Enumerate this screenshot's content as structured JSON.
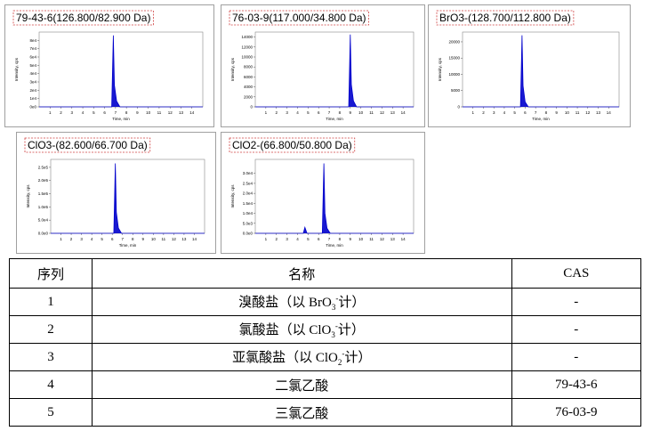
{
  "chart_data": [
    {
      "type": "line",
      "title": "79-43-6(126.800/82.900 Da)",
      "x_label": "Time, min",
      "y_label": "Intensity, cps",
      "color": "#0000cc",
      "x": [
        0,
        6.65,
        6.8,
        6.9,
        7.1,
        7.4,
        15
      ],
      "values": [
        0,
        0,
        86000,
        26000,
        7000,
        0,
        0
      ],
      "xlim": [
        0,
        15
      ],
      "xticks": [
        1,
        2,
        3,
        4,
        5,
        6,
        7,
        8,
        9,
        10,
        11,
        12,
        13,
        14
      ],
      "ylim": [
        0,
        90000
      ],
      "yticks": [
        {
          "value": 0,
          "label": "0e0"
        },
        {
          "value": 10000,
          "label": "1e4"
        },
        {
          "value": 20000,
          "label": "2e4"
        },
        {
          "value": 30000,
          "label": "3e4"
        },
        {
          "value": 40000,
          "label": "4e4"
        },
        {
          "value": 50000,
          "label": "5e4"
        },
        {
          "value": 60000,
          "label": "6e4"
        },
        {
          "value": 70000,
          "label": "7e4"
        },
        {
          "value": 80000,
          "label": "8e4"
        }
      ]
    },
    {
      "type": "line",
      "title": "76-03-9(117.000/34.800 Da)",
      "x_label": "Time, min",
      "y_label": "Intensity, cps",
      "color": "#0000cc",
      "x": [
        0,
        8.85,
        9.0,
        9.1,
        9.3,
        9.6,
        15
      ],
      "values": [
        0,
        0,
        14500,
        4500,
        1200,
        0,
        0
      ],
      "xlim": [
        0,
        15
      ],
      "xticks": [
        1,
        2,
        3,
        4,
        5,
        6,
        7,
        8,
        9,
        10,
        11,
        12,
        13,
        14
      ],
      "ylim": [
        0,
        15000
      ],
      "yticks": [
        0,
        2000,
        4000,
        6000,
        8000,
        10000,
        12000,
        14000
      ]
    },
    {
      "type": "line",
      "title": "BrO3-(128.700/112.800 Da)",
      "x_label": "Time, min",
      "y_label": "Intensity, cps",
      "color": "#0000cc",
      "x": [
        0,
        5.55,
        5.7,
        5.8,
        6.0,
        6.3,
        15
      ],
      "values": [
        0,
        0,
        22000,
        6500,
        1500,
        0,
        0
      ],
      "xlim": [
        0,
        15
      ],
      "xticks": [
        1,
        2,
        3,
        4,
        5,
        6,
        7,
        8,
        9,
        10,
        11,
        12,
        13,
        14
      ],
      "ylim": [
        0,
        23000
      ],
      "yticks": [
        0,
        5000,
        10000,
        15000,
        20000
      ]
    },
    {
      "type": "line",
      "title": "ClO3-(82.600/66.700 Da)",
      "x_label": "Time, min",
      "y_label": "Intensity, cps",
      "color": "#0000cc",
      "x": [
        0,
        6.15,
        6.3,
        6.4,
        6.6,
        6.9,
        15
      ],
      "values": [
        0,
        0,
        265000,
        80000,
        20000,
        0,
        0
      ],
      "xlim": [
        0,
        15
      ],
      "xticks": [
        1,
        2,
        3,
        4,
        5,
        6,
        7,
        8,
        9,
        10,
        11,
        12,
        13,
        14
      ],
      "ylim": [
        0,
        280000
      ],
      "yticks": [
        {
          "value": 0,
          "label": "0.0e0"
        },
        {
          "value": 50000,
          "label": "5.0e4"
        },
        {
          "value": 100000,
          "label": "1.0e5"
        },
        {
          "value": 150000,
          "label": "1.5e5"
        },
        {
          "value": 200000,
          "label": "2.0e5"
        },
        {
          "value": 250000,
          "label": "2.5e5"
        }
      ]
    },
    {
      "type": "line",
      "title": "ClO2-(66.800/50.800 Da)",
      "x_label": "Time, min",
      "y_label": "Intensity, cps",
      "color": "#0000cc",
      "x": [
        0,
        4.55,
        4.7,
        4.9,
        6.35,
        6.5,
        6.6,
        6.8,
        7.1,
        15
      ],
      "values": [
        0,
        0,
        3000,
        0,
        0,
        35000,
        10000,
        2500,
        0,
        0
      ],
      "xlim": [
        0,
        15
      ],
      "xticks": [
        1,
        2,
        3,
        4,
        5,
        6,
        7,
        8,
        9,
        10,
        11,
        12,
        13,
        14
      ],
      "ylim": [
        0,
        37000
      ],
      "yticks": [
        {
          "value": 0,
          "label": "0.0e0"
        },
        {
          "value": 5000,
          "label": "5.0e3"
        },
        {
          "value": 10000,
          "label": "1.0e4"
        },
        {
          "value": 15000,
          "label": "1.5e4"
        },
        {
          "value": 20000,
          "label": "2.0e4"
        },
        {
          "value": 25000,
          "label": "2.5e4"
        },
        {
          "value": 30000,
          "label": "3.0e4"
        }
      ]
    }
  ],
  "table": {
    "header": [
      "序列",
      "名称",
      "CAS"
    ],
    "rows": [
      [
        1,
        {
          "pre": "溴酸盐（以 BrO",
          "sub": "3",
          "sup": "-",
          "post": "计）"
        },
        "-"
      ],
      [
        2,
        {
          "pre": "氯酸盐（以 ClO",
          "sub": "3",
          "sup": "-",
          "post": "计）"
        },
        "-"
      ],
      [
        3,
        {
          "pre": "亚氯酸盐（以 ClO",
          "sub": "2",
          "sup": "-",
          "post": "计）"
        },
        "-"
      ],
      [
        4,
        "二氯乙酸",
        "79-43-6"
      ],
      [
        5,
        "三氯乙酸",
        "76-03-9"
      ]
    ]
  }
}
